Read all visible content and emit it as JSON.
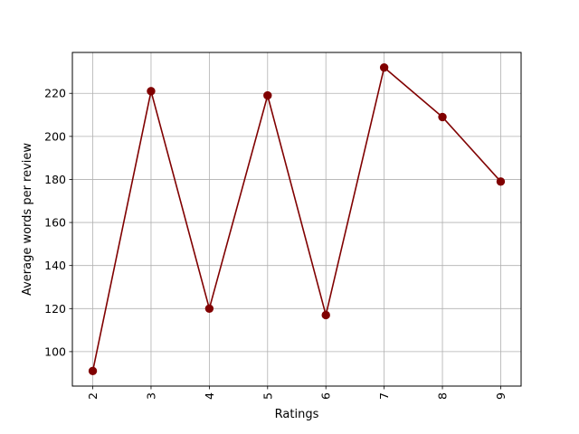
{
  "chart_data": {
    "type": "line",
    "xlabel": "Ratings",
    "ylabel": "Average words per review",
    "x": [
      2,
      3,
      4,
      5,
      6,
      7,
      8,
      9
    ],
    "x_tick_labels": [
      "2",
      "3",
      "4",
      "5",
      "6",
      "7",
      "8",
      "9"
    ],
    "series": [
      {
        "values": [
          91,
          221,
          120,
          219,
          117,
          232,
          209,
          179
        ]
      }
    ],
    "y_ticks": [
      100,
      120,
      140,
      160,
      180,
      200,
      220
    ],
    "y_tick_labels": [
      "100",
      "120",
      "140",
      "160",
      "180",
      "200",
      "220"
    ],
    "xlim": [
      1.65,
      9.35
    ],
    "ylim": [
      84,
      239
    ],
    "grid": true,
    "marker": "circle",
    "line_color": "#800000",
    "x_tick_rotation_deg": 90
  }
}
